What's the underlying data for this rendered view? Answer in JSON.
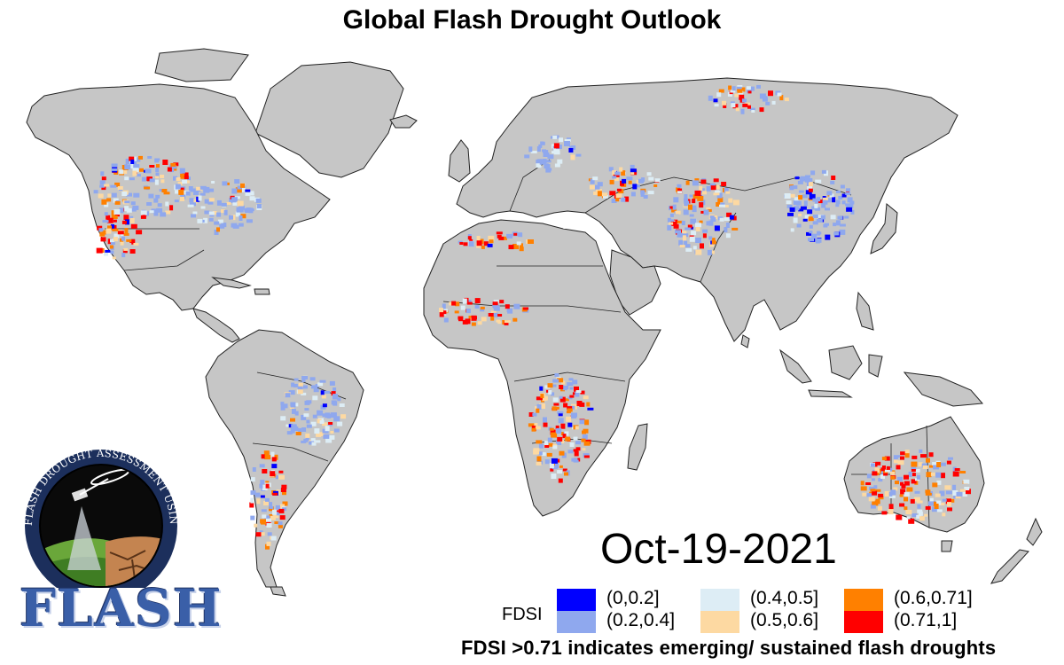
{
  "title": "Global Flash Drought Outlook",
  "date": "Oct-19-2021",
  "legend": {
    "label": "FDSI",
    "items": [
      {
        "range": "(0,0.2]",
        "color": "#0000ff"
      },
      {
        "range": "(0.2,0.4]",
        "color": "#8fa8ee"
      },
      {
        "range": "(0.4,0.5]",
        "color": "#ddedf5"
      },
      {
        "range": "(0.5,0.6]",
        "color": "#fdd9a2"
      },
      {
        "range": "(0.6,0.71]",
        "color": "#ff8000"
      },
      {
        "range": "(0.71,1]",
        "color": "#ff0000"
      }
    ]
  },
  "note": "FDSI >0.71 indicates emerging/ sustained flash droughts",
  "logo": {
    "word": "FLASH",
    "ring_text": "FLASH DROUGHT ASSESSMENT USING SMAP HYDROLOGY"
  },
  "colors": {
    "land": "#c6c6c6",
    "border": "#222222",
    "ocean": "#ffffff"
  }
}
